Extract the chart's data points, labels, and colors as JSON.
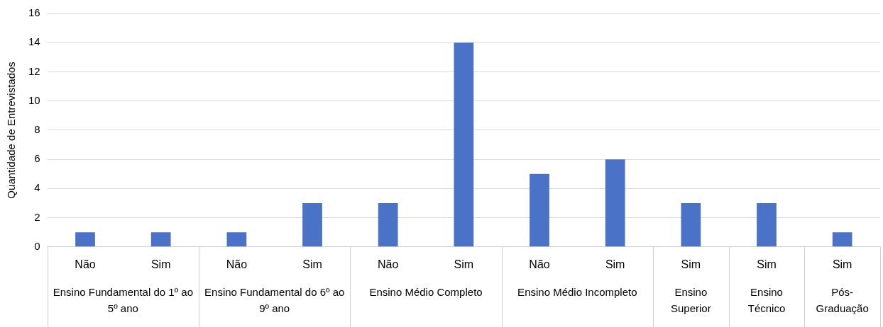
{
  "chart_data": {
    "type": "bar",
    "ylabel": "Quantidade de Entrevistados",
    "categories": [
      "Não",
      "Sim",
      "Não",
      "Sim",
      "Não",
      "Sim",
      "Não",
      "Sim",
      "Sim",
      "Sim",
      "Sim"
    ],
    "values": [
      1,
      1,
      1,
      3,
      3,
      14,
      5,
      6,
      3,
      3,
      1
    ],
    "color": "#4a72c6",
    "ylim": [
      0,
      16
    ],
    "yticks": [
      0,
      2,
      4,
      6,
      8,
      10,
      12,
      14,
      16
    ],
    "grid": "y",
    "annotations": [
      "Ensino Fundamental do 1º ao 5º ano",
      "Ensino Fundamental do 6º ao 9º ano",
      "Ensino Médio Completo",
      "Ensino Médio Incompleto",
      "Ensino Superior",
      "Ensino Técnico",
      "Pós-Graduação"
    ]
  }
}
